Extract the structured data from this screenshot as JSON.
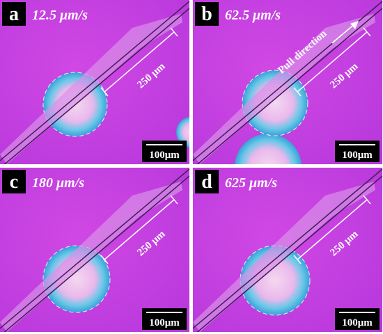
{
  "panels": [
    {
      "letter": "a",
      "speed": "12.5 μm/s",
      "measure": "250 μm",
      "scale_bar": "100μm"
    },
    {
      "letter": "b",
      "speed": "62.5 μm/s",
      "measure": "250 μm",
      "scale_bar": "100μm",
      "annotation": "Pull direction"
    },
    {
      "letter": "c",
      "speed": "180 μm/s",
      "measure": "250 μm",
      "scale_bar": "100μm"
    },
    {
      "letter": "d",
      "speed": "625 μm/s",
      "measure": "250 μm",
      "scale_bar": "100μm"
    }
  ]
}
